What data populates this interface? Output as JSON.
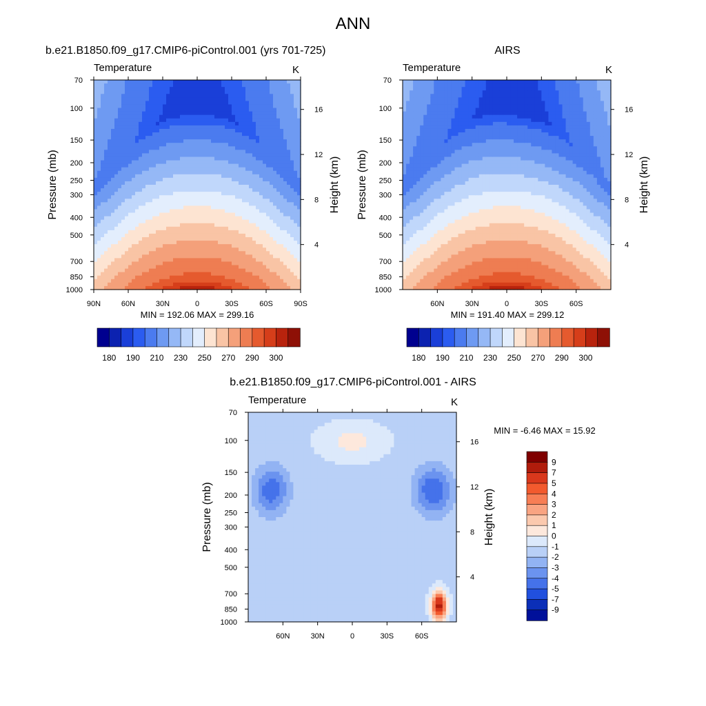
{
  "figure": {
    "title": "ANN"
  },
  "chart_data": [
    {
      "type": "heatmap",
      "title": "b.e21.B1850.f09_g17.CMIP6-piControl.001 (yrs 701-725)",
      "subtitle": "Temperature",
      "units": "K",
      "ylabel": "Pressure (mb)",
      "ylabel_right": "Height (km)",
      "pressure_ticks": [
        "70",
        "100",
        "150",
        "200",
        "250",
        "300",
        "400",
        "500",
        "700",
        "850",
        "1000"
      ],
      "height_ticks": [
        "16",
        "12",
        "8",
        "4"
      ],
      "lat_ticks": [
        "90N",
        "60N",
        "30N",
        "0",
        "30S",
        "60S",
        "90S"
      ],
      "stats": "MIN = 192.06  MAX = 299.16",
      "colorbar": {
        "labels": [
          "180",
          "190",
          "210",
          "230",
          "250",
          "270",
          "290",
          "300"
        ],
        "colors": [
          "#00008f",
          "#0c22b0",
          "#1a3fd8",
          "#2b5cf0",
          "#4b7bef",
          "#6e9af2",
          "#95b8f6",
          "#c0d7fb",
          "#e3eefd",
          "#fde4d2",
          "#f9c4a5",
          "#f4a07a",
          "#ee7d52",
          "#e55a2e",
          "#d63e1a",
          "#b8230d",
          "#8e1006"
        ]
      },
      "field": "model"
    },
    {
      "type": "heatmap",
      "title": "AIRS",
      "subtitle": "Temperature",
      "units": "K",
      "ylabel": "Pressure (mb)",
      "ylabel_right": "Height (km)",
      "pressure_ticks": [
        "70",
        "100",
        "150",
        "200",
        "250",
        "300",
        "400",
        "500",
        "700",
        "850",
        "1000"
      ],
      "height_ticks": [
        "16",
        "12",
        "8",
        "4"
      ],
      "lat_ticks": [
        "60N",
        "30N",
        "0",
        "30S",
        "60S"
      ],
      "stats": "MIN = 191.40  MAX = 299.12",
      "colorbar": {
        "labels": [
          "180",
          "190",
          "210",
          "230",
          "250",
          "270",
          "290",
          "300"
        ],
        "colors": [
          "#00008f",
          "#0c22b0",
          "#1a3fd8",
          "#2b5cf0",
          "#4b7bef",
          "#6e9af2",
          "#95b8f6",
          "#c0d7fb",
          "#e3eefd",
          "#fde4d2",
          "#f9c4a5",
          "#f4a07a",
          "#ee7d52",
          "#e55a2e",
          "#d63e1a",
          "#b8230d",
          "#8e1006"
        ]
      },
      "field": "obs"
    },
    {
      "type": "heatmap",
      "title": "b.e21.B1850.f09_g17.CMIP6-piControl.001 - AIRS",
      "subtitle": "Temperature",
      "units": "K",
      "ylabel": "Pressure (mb)",
      "ylabel_right": "Height (km)",
      "pressure_ticks": [
        "70",
        "100",
        "150",
        "200",
        "250",
        "300",
        "400",
        "500",
        "700",
        "850",
        "1000"
      ],
      "height_ticks": [
        "16",
        "12",
        "8",
        "4"
      ],
      "lat_ticks": [
        "60N",
        "30N",
        "0",
        "30S",
        "60S"
      ],
      "stats": "MIN =  -6.46  MAX =  15.92",
      "colorbar": {
        "labels": [
          "9",
          "7",
          "5",
          "4",
          "3",
          "2",
          "1",
          "0",
          "-1",
          "-2",
          "-3",
          "-4",
          "-5",
          "-7",
          "-9"
        ],
        "colors": [
          "#7f0000",
          "#b01c0c",
          "#d9381c",
          "#f25a2e",
          "#f77e55",
          "#f9a482",
          "#fbc9ae",
          "#fde8dc",
          "#dce9fb",
          "#b9d0f7",
          "#92b3f3",
          "#6b93ef",
          "#4572ea",
          "#2150de",
          "#0b2fb8",
          "#00109a"
        ]
      },
      "field": "diff"
    }
  ]
}
